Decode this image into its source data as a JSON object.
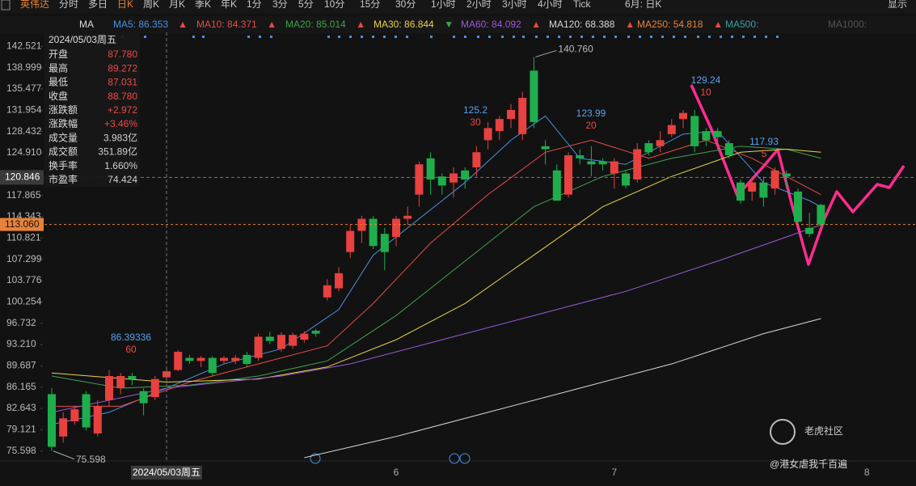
{
  "toolbar": {
    "symbol": "英伟达",
    "periods": [
      "分时",
      "多日",
      "日K",
      "周K",
      "月K",
      "季K",
      "年K",
      "1分",
      "3分",
      "5分",
      "10分",
      "15分",
      "30分",
      "1小时",
      "2小时",
      "3小时",
      "4小时",
      "Tick"
    ],
    "active": "日K",
    "range": "6月: 日K",
    "display": "显示"
  },
  "indicator_bar": {
    "name": "MA",
    "items": [
      {
        "text": "MA5: 86.353",
        "arrow": "▲",
        "color": "#4a90e2"
      },
      {
        "text": "MA10: 84.371",
        "arrow": "▲",
        "color": "#e84a4a"
      },
      {
        "text": "MA20: 85.014",
        "arrow": "▲",
        "color": "#3fa34d"
      },
      {
        "text": "MA30: 86.844",
        "arrow": "▼",
        "color": "#e8d44a"
      },
      {
        "text": "MA60: 84.092",
        "arrow": "▲",
        "color": "#9b59d9"
      },
      {
        "text": "MA120: 68.388",
        "arrow": "▲",
        "color": "#d8d8d8"
      },
      {
        "text": "MA250: 54.818",
        "arrow": "▲",
        "color": "#e8823a"
      },
      {
        "text": "MA500:",
        "arrow": "",
        "color": "#3a9f9f"
      },
      {
        "text": "MA1000:",
        "arrow": "",
        "color": "#555555"
      }
    ]
  },
  "info_panel": {
    "rows": [
      {
        "label": "开盘",
        "value": "87.780",
        "color": "#f04848"
      },
      {
        "label": "最高",
        "value": "89.272",
        "color": "#f04848"
      },
      {
        "label": "最低",
        "value": "87.031",
        "color": "#f04848"
      },
      {
        "label": "收盘",
        "value": "88.780",
        "color": "#f04848"
      },
      {
        "label": "涨跌额",
        "value": "+2.972",
        "color": "#f04848"
      },
      {
        "label": "涨跌幅",
        "value": "+3.46%",
        "color": "#f04848"
      },
      {
        "label": "成交量",
        "value": "3.983亿",
        "color": "#d0d0d0"
      },
      {
        "label": "成交额",
        "value": "351.89亿",
        "color": "#d0d0d0"
      },
      {
        "label": "换手率",
        "value": "1.660%",
        "color": "#d0d0d0"
      },
      {
        "label": "市盈率",
        "value": "74.424",
        "color": "#d0d0d0"
      }
    ]
  },
  "watermark": {
    "brand": "老虎社区",
    "author": "@港女虐我千百遍"
  },
  "chart_data": {
    "type": "candlestick",
    "up_color": "#e8413f",
    "down_color": "#1fae4c",
    "categories": [
      null,
      null,
      null,
      null,
      null,
      null,
      null,
      null,
      null,
      null,
      null,
      null,
      null,
      null,
      null,
      null,
      null,
      null,
      null,
      null,
      null,
      null,
      null,
      null,
      null,
      null,
      null,
      null,
      null,
      null,
      "6",
      null,
      null,
      null,
      null,
      null,
      null,
      null,
      null,
      null,
      null,
      null,
      null,
      null,
      null,
      null,
      null,
      null,
      null,
      "7",
      null,
      null,
      null,
      null,
      null,
      null,
      null,
      null,
      null,
      null,
      null,
      null,
      null,
      null,
      null,
      null,
      null,
      null,
      null,
      null,
      null,
      "8"
    ],
    "open": [
      85,
      78,
      80.5,
      85,
      78.5,
      84,
      86,
      88,
      85.5,
      84.5,
      87.78,
      89,
      91,
      90.5,
      91,
      90.5,
      90.5,
      91.5,
      91,
      94.5,
      92.5,
      93,
      94,
      95.5,
      101,
      102.5,
      108.5,
      112,
      114,
      111.5,
      111,
      114,
      118,
      124,
      121,
      120,
      122,
      122.5,
      127,
      128.5,
      130.5,
      128,
      138.5,
      126,
      122,
      118,
      124.5,
      123.5,
      123.5,
      121.5,
      121.5,
      120.5,
      126.5,
      126,
      128,
      130.5,
      131,
      128.5,
      128.5,
      126.5,
      120,
      118.5,
      120,
      119,
      121.5,
      118.5,
      112.5,
      116.3,
      null,
      null,
      null,
      null
    ],
    "high": [
      86,
      82,
      83,
      85.5,
      84,
      89,
      88.5,
      88.5,
      86,
      88,
      89.272,
      92.3,
      91.5,
      91.3,
      91.3,
      91.3,
      91.5,
      92,
      95,
      95.3,
      95.2,
      95.2,
      95.4,
      95.8,
      104,
      106,
      113,
      114.5,
      114.5,
      112.5,
      114.5,
      116,
      123.5,
      125,
      121.5,
      122.5,
      122.5,
      126,
      130,
      131,
      133,
      135,
      140.76,
      127,
      123,
      125,
      125.5,
      126,
      124,
      124,
      122,
      126.5,
      127,
      128.5,
      130.5,
      132,
      132,
      129,
      129,
      127,
      120.5,
      121,
      121,
      122.5,
      122,
      119,
      115,
      116.5,
      null,
      null,
      null,
      null
    ],
    "low": [
      75.598,
      77,
      80,
      79,
      78,
      83,
      85,
      86.5,
      81.5,
      84,
      87.031,
      88.8,
      90,
      89.5,
      88,
      90,
      90,
      89.5,
      90.5,
      93.3,
      92,
      92.5,
      93.5,
      94.5,
      100.5,
      102,
      107.5,
      110,
      109,
      105.5,
      109.5,
      113,
      116,
      118,
      118,
      117.5,
      119,
      121,
      125.5,
      127,
      129,
      127,
      129,
      123,
      117,
      117.5,
      123,
      121,
      122,
      119,
      119,
      120,
      124.5,
      125,
      127.5,
      129,
      125,
      126,
      125.5,
      124,
      116.5,
      117,
      116,
      118,
      119,
      113,
      111,
      112.5,
      null,
      null,
      null,
      null
    ],
    "close": [
      76.3,
      81,
      82.5,
      79.5,
      83,
      88,
      88,
      87.5,
      83.5,
      87.5,
      88.78,
      92,
      90.5,
      91,
      88.5,
      91,
      91,
      90,
      94.5,
      93.8,
      94.8,
      94.8,
      95,
      95,
      103,
      105,
      112,
      114,
      109.5,
      108.5,
      114,
      114.5,
      123,
      120.5,
      119.5,
      121.5,
      120.5,
      125,
      129,
      130.5,
      132,
      134,
      130,
      125.5,
      117,
      124.5,
      124,
      123,
      123,
      123.5,
      119.5,
      125.5,
      125,
      127,
      129.5,
      131.5,
      126,
      127,
      127.5,
      124.5,
      117,
      120,
      117.5,
      122,
      121,
      113.5,
      111.5,
      113.06,
      null,
      null,
      null,
      null
    ],
    "series": [
      {
        "name": "MA5",
        "color": "#4a90e2",
        "x": [
          0,
          5,
          10,
          15,
          20,
          25,
          28,
          32,
          36,
          40,
          43,
          46,
          50,
          55,
          58,
          62,
          66,
          67
        ],
        "values": [
          80,
          82,
          86,
          90,
          92.5,
          99,
          108,
          114,
          120,
          127,
          131,
          124,
          123,
          128,
          128.5,
          120,
          117,
          116
        ]
      },
      {
        "name": "MA10",
        "color": "#e84a4a",
        "x": [
          0,
          6,
          12,
          18,
          24,
          28,
          33,
          38,
          43,
          47,
          52,
          57,
          61,
          65,
          67
        ],
        "values": [
          83,
          83,
          87,
          90,
          93,
          100,
          110,
          118,
          125,
          127,
          124,
          127,
          124,
          120,
          118
        ]
      },
      {
        "name": "MA20",
        "color": "#3fa34d",
        "x": [
          0,
          6,
          12,
          18,
          24,
          30,
          36,
          42,
          48,
          54,
          60,
          64,
          67
        ],
        "values": [
          88,
          86,
          86.5,
          88,
          90.5,
          98,
          107,
          116,
          121,
          124,
          126,
          125.5,
          124
        ]
      },
      {
        "name": "MA30",
        "color": "#e8d44a",
        "x": [
          0,
          10,
          18,
          24,
          30,
          36,
          42,
          48,
          54,
          60,
          64,
          67
        ],
        "values": [
          88.5,
          87,
          87.5,
          89.5,
          94,
          100,
          108,
          116,
          121,
          125,
          125.5,
          125
        ]
      },
      {
        "name": "MA60",
        "color": "#9b59d9",
        "x": [
          0,
          10,
          20,
          26,
          34,
          42,
          50,
          58,
          64,
          67
        ],
        "values": [
          82,
          86,
          88,
          90,
          94,
          98,
          102,
          107,
          111,
          113
        ]
      },
      {
        "name": "MA120",
        "color": "#d8d8d8",
        "x": [
          22,
          30,
          38,
          46,
          54,
          62,
          67
        ],
        "values": [
          74.5,
          78,
          82,
          86,
          90,
          95,
          97.5
        ]
      }
    ],
    "annotations": [
      {
        "price": 86.39336,
        "period": 60
      },
      {
        "price": 125.2,
        "period": 30
      },
      {
        "price": 123.99,
        "period": 20
      },
      {
        "price": 129.24,
        "period": 10
      },
      {
        "price": 117.93,
        "period": 5
      }
    ],
    "high_mark": {
      "value": 140.76,
      "label": "140.760"
    },
    "low_mark": {
      "value": 75.598,
      "label": "75.598"
    },
    "last_price": {
      "value": 113.06,
      "label": "113.060"
    },
    "crosshair": {
      "date": "2024/05/03周五",
      "price": {
        "value": 120.846,
        "label": "120.846"
      }
    },
    "ylim": [
      73.96,
      144.83
    ],
    "yticks": [
      142.521,
      138.999,
      135.477,
      131.954,
      128.432,
      {
        "value": 124.91,
        "label": "124.910"
      },
      117.865,
      114.343,
      110.821,
      107.299,
      103.776,
      100.254,
      96.732,
      {
        "value": 93.21,
        "label": "93.210"
      },
      89.687,
      86.165,
      82.643,
      79.121,
      75.598
    ]
  }
}
